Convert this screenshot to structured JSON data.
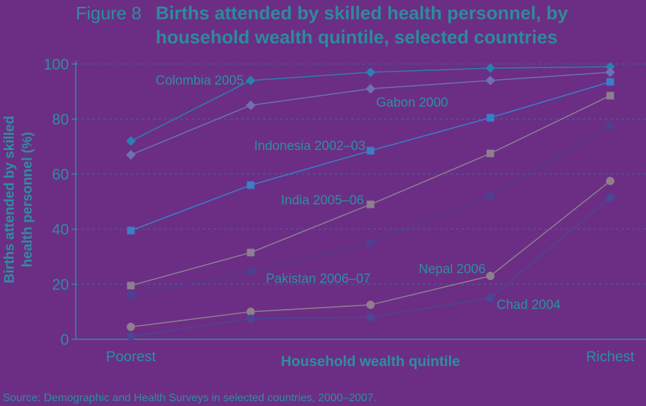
{
  "header": {
    "figure_number": "Figure 8",
    "title_line1": "Births attended by skilled health personnel, by",
    "title_line2": "household wealth quintile, selected countries"
  },
  "source": "Source: Demographic and Health Surveys in selected countries, 2000–2007.",
  "colors": {
    "background": "#6b2e84",
    "text": "#2c8fa0",
    "title_text": "#2e8a9c"
  },
  "chart_data": {
    "type": "line",
    "title": "Births attended by skilled health personnel, by household wealth quintile, selected countries",
    "xlabel": "Household wealth quintile",
    "ylabel_lines": [
      "Births attended by skilled",
      "health personnel (%)"
    ],
    "ylim": [
      0,
      100
    ],
    "yticks": [
      0,
      20,
      40,
      60,
      80,
      100
    ],
    "x_tick_labels": [
      "Poorest",
      "",
      "",
      "",
      "Richest"
    ],
    "grid": true,
    "series": [
      {
        "name": "Colombia 2005",
        "marker": "diamond",
        "color": "#2d7fb0",
        "values": [
          72,
          94,
          97,
          98.5,
          99
        ]
      },
      {
        "name": "Gabon 2000",
        "marker": "diamond",
        "color": "#6f70b4",
        "values": [
          67,
          85,
          91,
          94,
          97
        ]
      },
      {
        "name": "Indonesia 2002–03",
        "marker": "square",
        "color": "#3b7ec8",
        "values": [
          39.5,
          56,
          68.5,
          80.5,
          93.5
        ]
      },
      {
        "name": "India 2005–06",
        "marker": "square",
        "color": "#8d7f90",
        "values": [
          19.5,
          31.5,
          49,
          67.5,
          88.5
        ]
      },
      {
        "name": "Pakistan 2006–07",
        "marker": "square",
        "color": "#4e3f8f",
        "values": [
          16,
          24.5,
          35,
          52,
          77.5
        ]
      },
      {
        "name": "Nepal 2006",
        "marker": "circle",
        "color": "#8f7f8c",
        "values": [
          4.5,
          10,
          12.5,
          23,
          57.5
        ]
      },
      {
        "name": "Chad 2004",
        "marker": "circle",
        "color": "#4b4696",
        "values": [
          1,
          7.5,
          8,
          15,
          51.5
        ]
      }
    ]
  }
}
